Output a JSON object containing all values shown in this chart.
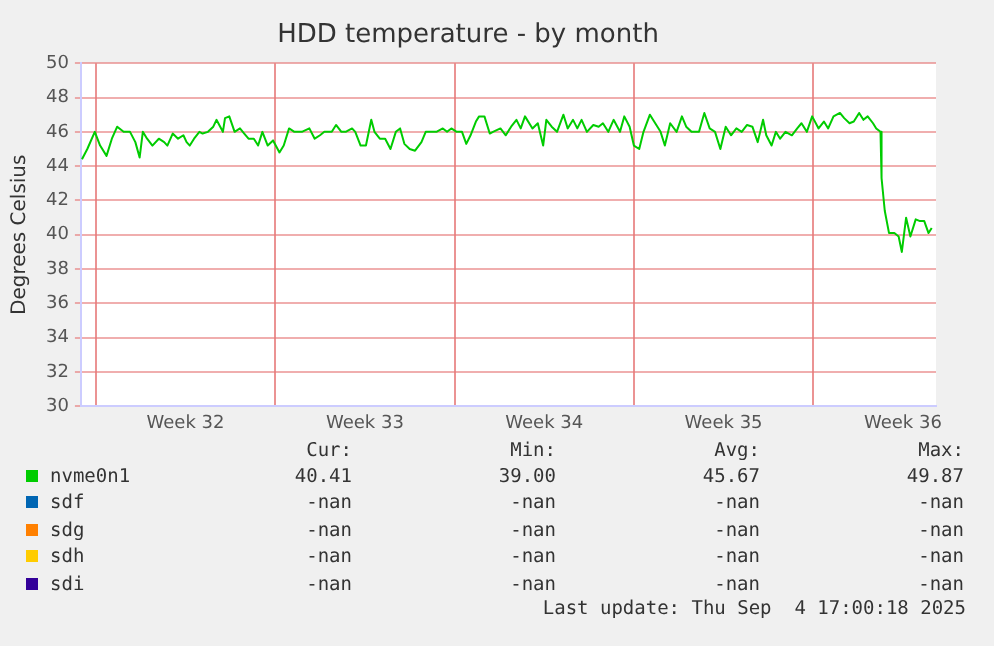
{
  "chart_data": {
    "type": "line",
    "title": "HDD temperature - by month",
    "ylabel": "Degrees Celsius",
    "xlim": [
      "2025-08-02T12:00",
      "2025-09-04T21:00"
    ],
    "xticks": [
      {
        "value": "2025-08-03T02:00",
        "label": null
      },
      {
        "value": "2025-08-06T14:00",
        "label": "Week 32"
      },
      {
        "value": "2025-08-10T02:00",
        "label": null
      },
      {
        "value": "2025-08-13T14:00",
        "label": "Week 33"
      },
      {
        "value": "2025-08-17T02:00",
        "label": null
      },
      {
        "value": "2025-08-20T14:00",
        "label": "Week 34"
      },
      {
        "value": "2025-08-24T02:00",
        "label": null
      },
      {
        "value": "2025-08-27T14:00",
        "label": "Week 35"
      },
      {
        "value": "2025-08-31T02:00",
        "label": null
      },
      {
        "value": "2025-09-03T14:00",
        "label": "Week 36"
      }
    ],
    "ylim": [
      30,
      50
    ],
    "yticks": [
      30,
      32,
      34,
      36,
      38,
      40,
      42,
      44,
      46,
      48,
      50
    ],
    "grid": true,
    "legend": "bottom",
    "marker": "none",
    "line_style": "solid",
    "series": [
      {
        "name": "nvme0n1",
        "color": "#00cc00",
        "x": [
          "2025-08-02T13:00",
          "2025-08-02T18:00",
          "2025-08-03T01:00",
          "2025-08-03T06:00",
          "2025-08-03T12:00",
          "2025-08-03T17:00",
          "2025-08-03T22:00",
          "2025-08-04T04:00",
          "2025-08-04T10:00",
          "2025-08-04T15:00",
          "2025-08-04T19:00",
          "2025-08-04T22:00",
          "2025-08-05T02:00",
          "2025-08-05T07:00",
          "2025-08-05T13:00",
          "2025-08-05T18:00",
          "2025-08-05T21:00",
          "2025-08-06T02:00",
          "2025-08-06T07:00",
          "2025-08-06T12:00",
          "2025-08-06T15:00",
          "2025-08-06T18:00",
          "2025-08-06T22:00",
          "2025-08-07T03:00",
          "2025-08-07T06:00",
          "2025-08-07T11:00",
          "2025-08-07T16:00",
          "2025-08-07T19:00",
          "2025-08-08T01:00",
          "2025-08-08T03:00",
          "2025-08-08T07:00",
          "2025-08-08T12:00",
          "2025-08-08T17:00",
          "2025-08-08T21:00",
          "2025-08-09T01:00",
          "2025-08-09T06:00",
          "2025-08-09T10:00",
          "2025-08-09T14:00",
          "2025-08-09T19:00",
          "2025-08-10T00:00",
          "2025-08-10T06:00",
          "2025-08-10T10:00",
          "2025-08-10T15:00",
          "2025-08-10T20:00",
          "2025-08-11T03:00",
          "2025-08-11T10:00",
          "2025-08-11T15:00",
          "2025-08-11T20:00",
          "2025-08-12T00:00",
          "2025-08-12T07:00",
          "2025-08-12T11:00",
          "2025-08-12T16:00",
          "2025-08-12T20:00",
          "2025-08-13T02:00",
          "2025-08-13T05:00",
          "2025-08-13T10:00",
          "2025-08-13T15:00",
          "2025-08-13T20:00",
          "2025-08-13T23:00",
          "2025-08-14T04:00",
          "2025-08-14T09:00",
          "2025-08-14T14:00",
          "2025-08-14T19:00",
          "2025-08-14T23:00",
          "2025-08-15T03:00",
          "2025-08-15T08:00",
          "2025-08-15T13:00",
          "2025-08-15T19:00",
          "2025-08-15T23:00",
          "2025-08-16T04:00",
          "2025-08-16T09:00",
          "2025-08-16T15:00",
          "2025-08-16T19:00",
          "2025-08-16T23:00",
          "2025-08-17T04:00",
          "2025-08-17T09:00",
          "2025-08-17T13:00",
          "2025-08-17T17:00",
          "2025-08-17T22:00",
          "2025-08-18T01:00",
          "2025-08-18T06:00",
          "2025-08-18T11:00",
          "2025-08-18T14:00",
          "2025-08-18T21:00",
          "2025-08-19T02:00",
          "2025-08-19T07:00",
          "2025-08-19T12:00",
          "2025-08-19T16:00",
          "2025-08-19T20:00",
          "2025-08-20T03:00",
          "2025-08-20T08:00",
          "2025-08-20T13:00",
          "2025-08-20T16:00",
          "2025-08-20T21:00",
          "2025-08-21T02:00",
          "2025-08-21T08:00",
          "2025-08-21T12:00",
          "2025-08-21T17:00",
          "2025-08-21T21:00",
          "2025-08-22T01:00",
          "2025-08-22T06:00",
          "2025-08-22T12:00",
          "2025-08-22T17:00",
          "2025-08-22T21:00",
          "2025-08-23T02:00",
          "2025-08-23T07:00",
          "2025-08-23T13:00",
          "2025-08-23T17:00",
          "2025-08-23T22:00",
          "2025-08-24T02:00",
          "2025-08-24T07:00",
          "2025-08-24T11:00",
          "2025-08-24T17:00",
          "2025-08-24T22:00",
          "2025-08-25T03:00",
          "2025-08-25T07:00",
          "2025-08-25T12:00",
          "2025-08-25T18:00",
          "2025-08-25T23:00",
          "2025-08-26T03:00",
          "2025-08-26T08:00",
          "2025-08-26T15:00",
          "2025-08-26T20:00",
          "2025-08-27T01:00",
          "2025-08-27T06:00",
          "2025-08-27T11:00",
          "2025-08-27T16:00",
          "2025-08-27T21:00",
          "2025-08-28T02:00",
          "2025-08-28T07:00",
          "2025-08-28T12:00",
          "2025-08-28T17:00",
          "2025-08-28T22:00",
          "2025-08-29T03:00",
          "2025-08-29T06:00",
          "2025-08-29T11:00",
          "2025-08-29T15:00",
          "2025-08-29T19:00",
          "2025-08-30T00:00",
          "2025-08-30T06:00",
          "2025-08-30T11:00",
          "2025-08-30T15:00",
          "2025-08-30T20:00",
          "2025-08-31T01:00",
          "2025-08-31T07:00",
          "2025-08-31T12:00",
          "2025-08-31T16:00",
          "2025-08-31T21:00",
          "2025-09-01T03:00",
          "2025-09-01T07:00",
          "2025-09-01T12:00",
          "2025-09-01T16:00",
          "2025-09-01T21:00",
          "2025-09-02T01:00",
          "2025-09-02T05:00",
          "2025-09-02T10:00",
          "2025-09-02T13:00",
          "2025-09-02T17:00",
          "2025-09-02T18:00",
          "2025-09-02T21:00",
          "2025-09-03T01:00",
          "2025-09-03T06:00",
          "2025-09-03T10:00",
          "2025-09-03T13:00",
          "2025-09-03T17:00",
          "2025-09-03T21:00",
          "2025-09-04T02:00",
          "2025-09-04T06:00",
          "2025-09-04T10:00",
          "2025-09-04T14:00",
          "2025-09-04T17:00"
        ],
        "values": [
          44.4,
          45.0,
          46.0,
          45.2,
          44.6,
          45.6,
          46.3,
          46.0,
          46.0,
          45.4,
          44.5,
          46.0,
          45.6,
          45.2,
          45.6,
          45.4,
          45.2,
          45.9,
          45.6,
          45.8,
          45.4,
          45.2,
          45.6,
          46.0,
          45.9,
          46.0,
          46.3,
          46.7,
          46.0,
          46.8,
          46.9,
          46.0,
          46.2,
          45.9,
          45.6,
          45.6,
          45.2,
          46.0,
          45.2,
          45.5,
          44.8,
          45.2,
          46.2,
          46.0,
          46.0,
          46.2,
          45.6,
          45.8,
          46.0,
          46.0,
          46.4,
          46.0,
          46.0,
          46.2,
          46.0,
          45.2,
          45.2,
          46.7,
          46.0,
          45.6,
          45.6,
          45.0,
          46.0,
          46.2,
          45.3,
          45.0,
          44.9,
          45.4,
          46.0,
          46.0,
          46.0,
          46.2,
          46.0,
          46.2,
          46.0,
          46.0,
          45.3,
          45.8,
          46.6,
          46.9,
          46.9,
          45.9,
          46.0,
          46.2,
          45.8,
          46.3,
          46.7,
          46.2,
          46.9,
          46.2,
          46.5,
          45.2,
          46.7,
          46.3,
          46.0,
          47.0,
          46.2,
          46.7,
          46.2,
          46.7,
          46.0,
          46.4,
          46.3,
          46.5,
          46.0,
          46.7,
          46.0,
          46.9,
          46.3,
          45.2,
          45.0,
          46.0,
          47.0,
          46.5,
          46.0,
          45.2,
          46.5,
          46.0,
          46.9,
          46.3,
          46.0,
          46.0,
          47.1,
          46.2,
          46.0,
          45.0,
          46.3,
          45.8,
          46.2,
          46.0,
          46.4,
          46.3,
          45.4,
          46.7,
          45.8,
          45.2,
          46.0,
          45.6,
          46.0,
          45.8,
          46.2,
          46.5,
          46.0,
          46.9,
          46.2,
          46.6,
          46.2,
          46.9,
          47.1,
          46.8,
          46.5,
          46.6,
          47.1,
          46.7,
          46.9,
          46.5,
          46.2,
          46.0,
          43.3,
          41.4,
          40.1,
          40.1,
          39.9,
          39.0,
          41.0,
          39.9,
          40.9,
          40.8,
          40.8,
          40.1,
          40.4
        ]
      },
      {
        "name": "sdf",
        "color": "#0066b3"
      },
      {
        "name": "sdg",
        "color": "#ff8000"
      },
      {
        "name": "sdh",
        "color": "#ffcc00"
      },
      {
        "name": "sdi",
        "color": "#330099"
      }
    ],
    "annotations": [
      "Cur:",
      "Min:",
      "Avg:",
      "Max:",
      "40.41",
      "39.00",
      "45.67",
      "49.87",
      "-nan",
      "-nan",
      "-nan",
      "-nan",
      "-nan",
      "-nan",
      "-nan",
      "-nan",
      "-nan",
      "-nan",
      "-nan",
      "-nan",
      "-nan",
      "-nan",
      "-nan",
      "-nan",
      "Last update: Thu Sep  4 17:00:18 2025"
    ]
  }
}
